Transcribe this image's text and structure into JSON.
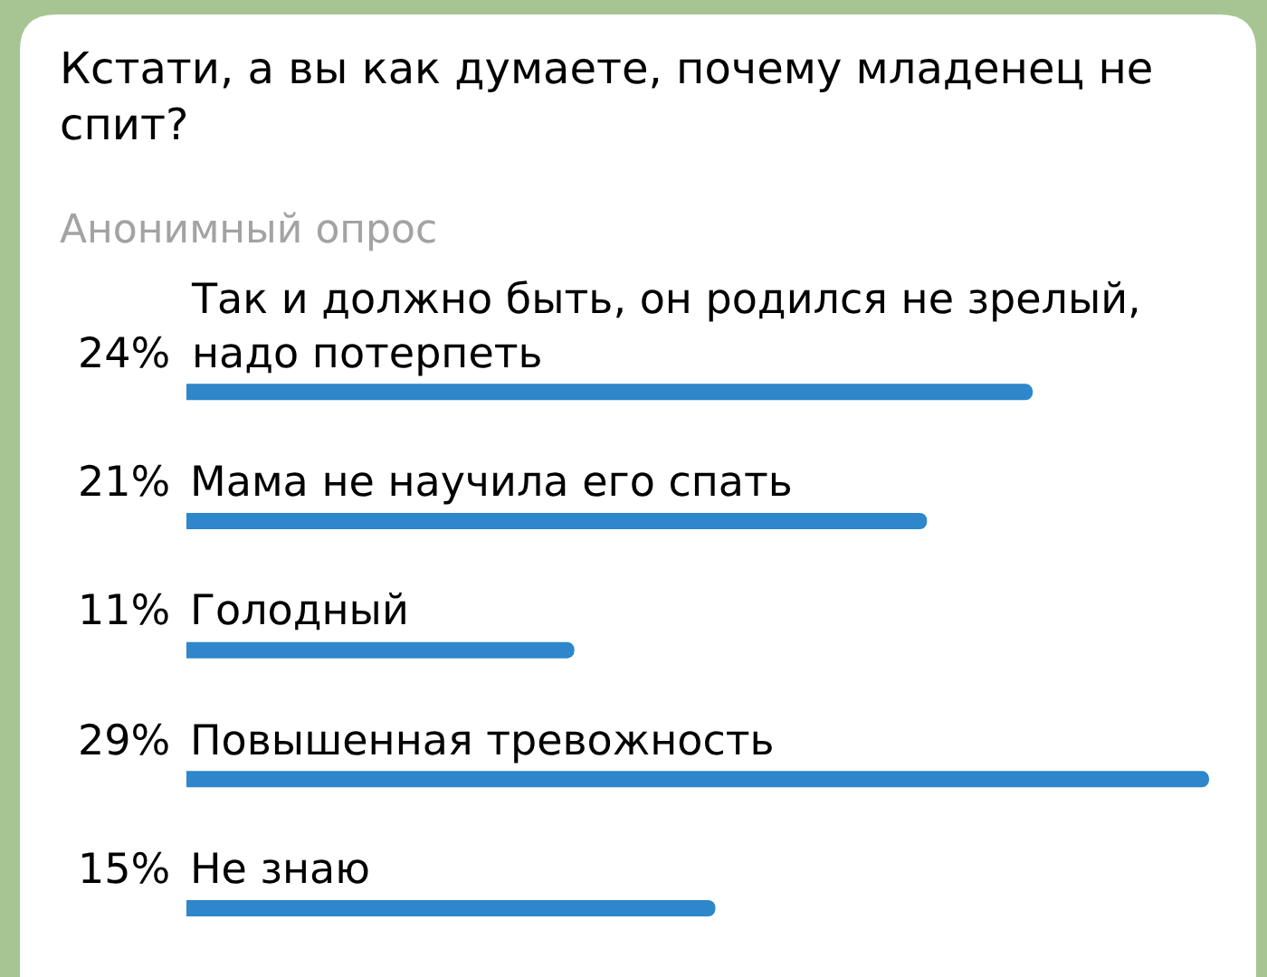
{
  "chart_data": {
    "type": "bar",
    "orientation": "horizontal",
    "title": "Кстати, а вы как думаете, почему младенец не спит?",
    "subtitle": "Анонимный опрос",
    "categories": [
      "Так и должно быть, он родился не зрелый, надо потерпеть",
      "Мама не научила его спать",
      "Голодный",
      "Повышенная тревожность",
      "Не знаю"
    ],
    "values": [
      24,
      21,
      11,
      29,
      15
    ],
    "value_labels": [
      "24%",
      "21%",
      "11%",
      "29%",
      "15%"
    ],
    "color": "#2e86cb",
    "tick_labels": "y"
  }
}
